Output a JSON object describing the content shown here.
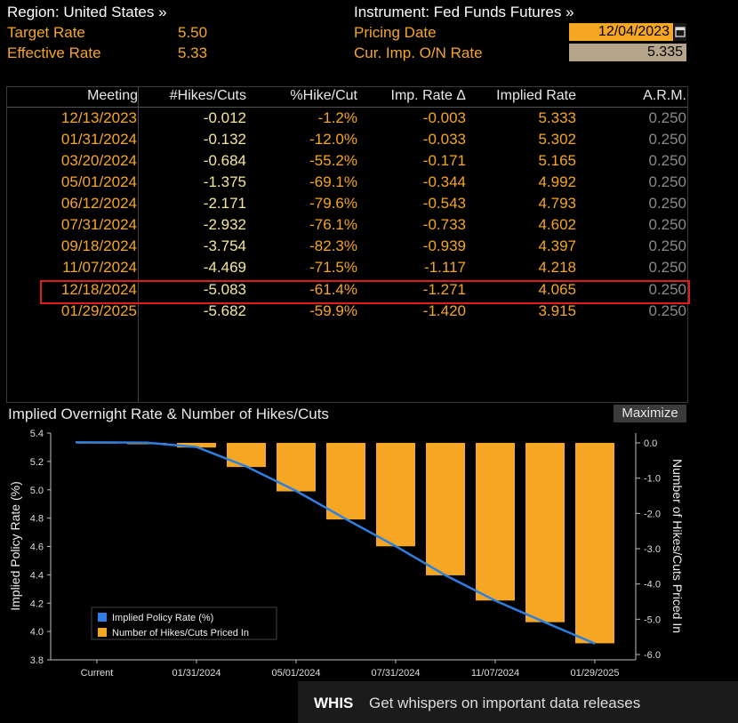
{
  "header": {
    "region": "Region: United States »",
    "target_label": "Target Rate",
    "target_value": "5.50",
    "effective_label": "Effective Rate",
    "effective_value": "5.33",
    "instrument": "Instrument: Fed Funds Futures »",
    "pricing_label": "Pricing Date",
    "pricing_date": "12/04/2023",
    "cur_label": "Cur. Imp. O/N Rate",
    "cur_value": "5.335"
  },
  "table": {
    "columns": [
      "Meeting",
      "#Hikes/Cuts",
      "%Hike/Cut",
      "Imp. Rate Δ",
      "Implied Rate",
      "A.R.M."
    ],
    "rows": [
      [
        "12/13/2023",
        "-0.012",
        "-1.2%",
        "-0.003",
        "5.333",
        "0.250"
      ],
      [
        "01/31/2024",
        "-0.132",
        "-12.0%",
        "-0.033",
        "5.302",
        "0.250"
      ],
      [
        "03/20/2024",
        "-0.684",
        "-55.2%",
        "-0.171",
        "5.165",
        "0.250"
      ],
      [
        "05/01/2024",
        "-1.375",
        "-69.1%",
        "-0.344",
        "4.992",
        "0.250"
      ],
      [
        "06/12/2024",
        "-2.171",
        "-79.6%",
        "-0.543",
        "4.793",
        "0.250"
      ],
      [
        "07/31/2024",
        "-2.932",
        "-76.1%",
        "-0.733",
        "4.602",
        "0.250"
      ],
      [
        "09/18/2024",
        "-3.754",
        "-82.3%",
        "-0.939",
        "4.397",
        "0.250"
      ],
      [
        "11/07/2024",
        "-4.469",
        "-71.5%",
        "-1.117",
        "4.218",
        "0.250"
      ],
      [
        "12/18/2024",
        "-5.083",
        "-61.4%",
        "-1.271",
        "4.065",
        "0.250"
      ],
      [
        "01/29/2025",
        "-5.682",
        "-59.9%",
        "-1.420",
        "3.915",
        "0.250"
      ]
    ],
    "highlight_row": 8
  },
  "chart": {
    "title": "Implied Overnight Rate & Number of Hikes/Cuts",
    "maximize_label": "Maximize"
  },
  "chart_data": {
    "type": "bar",
    "categories": [
      "Current",
      "12/13/2023",
      "01/31/2024",
      "03/20/2024",
      "05/01/2024",
      "06/12/2024",
      "07/31/2024",
      "09/18/2024",
      "11/07/2024",
      "12/18/2024",
      "01/29/2025"
    ],
    "x_tick_labels": [
      "Current",
      "01/31/2024",
      "05/01/2024",
      "07/31/2024",
      "11/07/2024",
      "01/29/2025"
    ],
    "series": [
      {
        "name": "Implied Policy Rate (%)",
        "kind": "line",
        "axis": "left",
        "color": "#2f7fe0",
        "values": [
          5.335,
          5.333,
          5.302,
          5.165,
          4.992,
          4.793,
          4.602,
          4.397,
          4.218,
          4.065,
          3.915
        ]
      },
      {
        "name": "Number of Hikes/Cuts Priced In",
        "kind": "bar",
        "axis": "right",
        "color": "#f5a623",
        "values": [
          0,
          -0.012,
          -0.132,
          -0.684,
          -1.375,
          -2.171,
          -2.932,
          -3.754,
          -4.469,
          -5.083,
          -5.682
        ]
      }
    ],
    "ylabel_left": "Implied Policy Rate (%)",
    "ylabel_right": "Number of Hikes/Cuts Priced In",
    "ylim_left": [
      3.8,
      5.4
    ],
    "ylim_right": [
      -6.0,
      0.0
    ],
    "yticks_left": [
      "5.4",
      "5.2",
      "5.0",
      "4.8",
      "4.6",
      "4.4",
      "4.2",
      "4.0",
      "3.8"
    ],
    "yticks_right": [
      "0.0",
      "-1.0",
      "-2.0",
      "-3.0",
      "-4.0",
      "-5.0",
      "-6.0"
    ],
    "legend_position": "bottom-left"
  },
  "banner": {
    "brand": "WHIS",
    "text": "Get whispers on important data releases"
  },
  "colors": {
    "accent": "#f5a623",
    "line": "#2f7fe0",
    "highlight": "#e11b1b"
  }
}
